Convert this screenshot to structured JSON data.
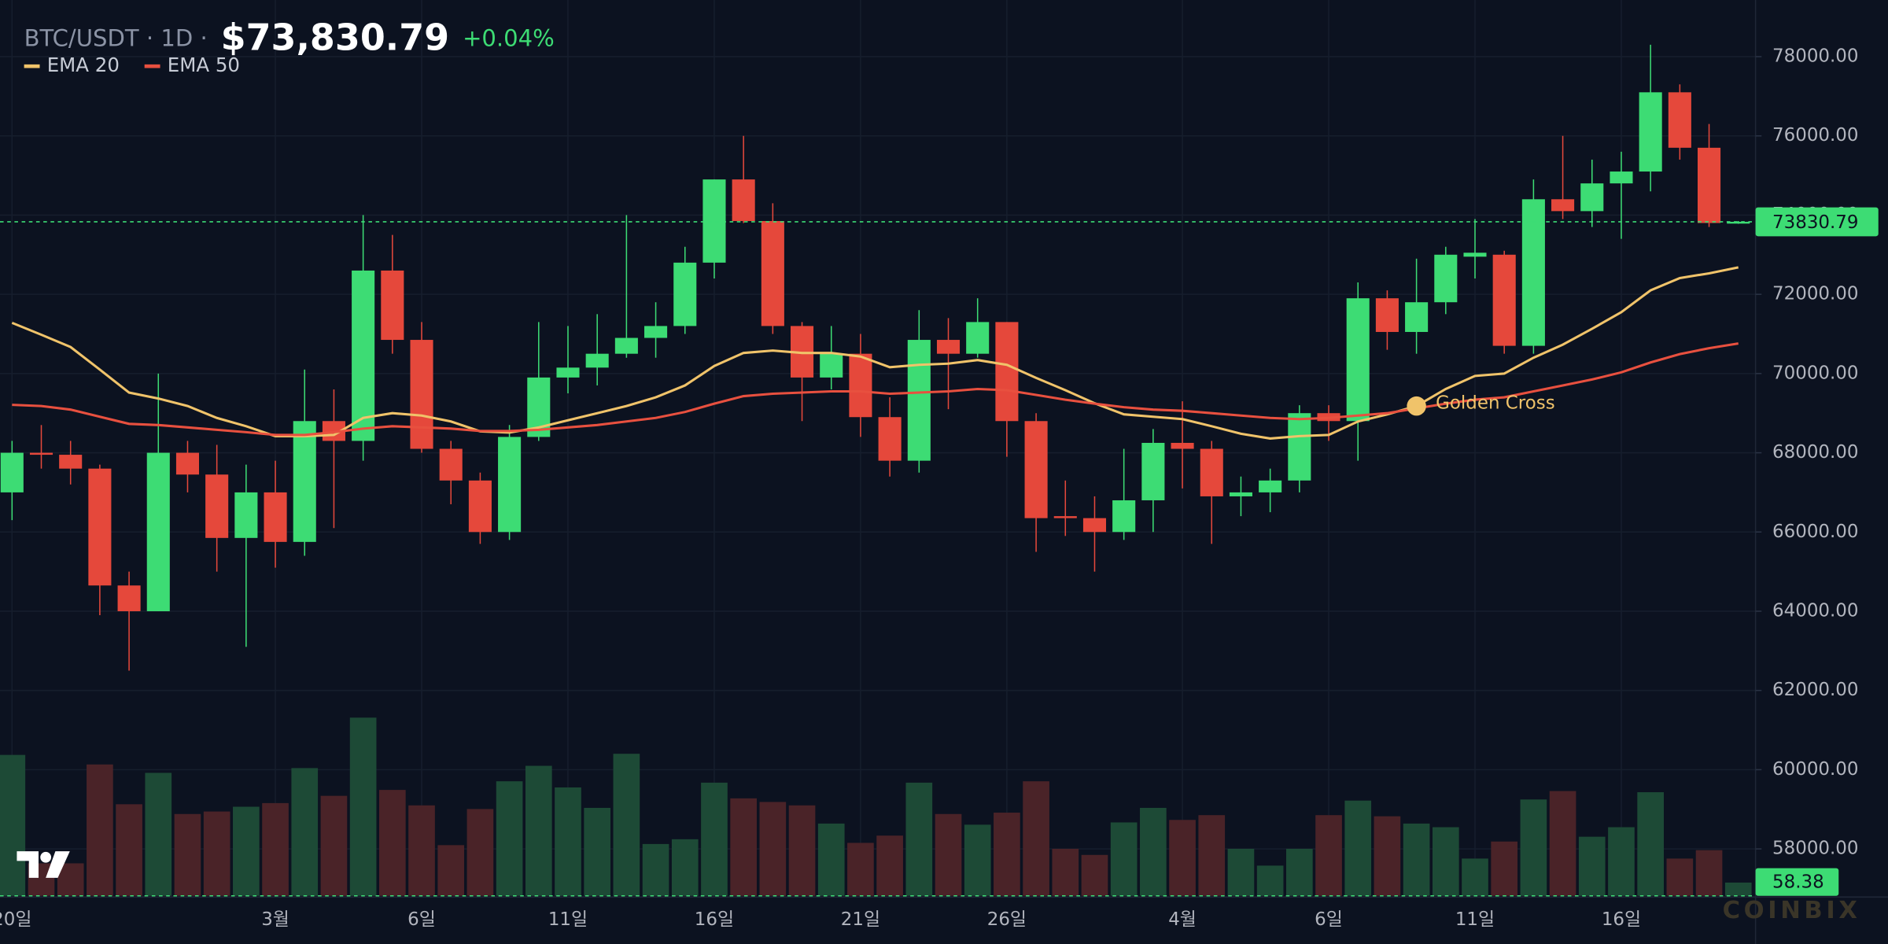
{
  "chart_data": {
    "type": "candlestick",
    "title": "BTC/USDT · 1D ·",
    "price": "$73,830.79",
    "change": "+0.04%",
    "watermark": "COINBIX",
    "up_color": "#3ddc74",
    "down_color": "#e5483b",
    "volume_up_color": "#1d4a36",
    "volume_down_color": "#4a2328",
    "categories": [
      "20일",
      null,
      null,
      null,
      null,
      null,
      null,
      null,
      null,
      "3월",
      null,
      null,
      null,
      null,
      "6일",
      null,
      null,
      null,
      null,
      "11일",
      null,
      null,
      null,
      null,
      "16일",
      null,
      null,
      null,
      null,
      "21일",
      null,
      null,
      null,
      null,
      "26일",
      null,
      null,
      null,
      null,
      null,
      "4월",
      null,
      null,
      null,
      null,
      "6일",
      null,
      null,
      null,
      null,
      "11일",
      null,
      null,
      null,
      null,
      "16일",
      null,
      null,
      null,
      null
    ],
    "open": [
      67000,
      68000,
      67950,
      67600,
      64650,
      64000,
      68000,
      67450,
      65850,
      67000,
      65750,
      68800,
      68300,
      72600,
      70850,
      68100,
      67300,
      66000,
      68400,
      69900,
      70150,
      70500,
      70900,
      71200,
      72800,
      74900,
      73850,
      71200,
      69900,
      70500,
      68900,
      67800,
      70850,
      70500,
      71300,
      68800,
      66400,
      66350,
      66000,
      66800,
      68250,
      68100,
      66900,
      67000,
      67300,
      69000,
      68800,
      71900,
      71050,
      71800,
      72950,
      73000,
      70700,
      74400,
      74100,
      74800,
      75100,
      77100,
      75700,
      73810
    ],
    "high": [
      68300,
      68700,
      68300,
      67700,
      65000,
      70000,
      68300,
      68200,
      67700,
      67800,
      70100,
      69600,
      74000,
      73500,
      71300,
      68300,
      67500,
      68700,
      71300,
      71200,
      71500,
      74000,
      71800,
      73200,
      74900,
      76000,
      74300,
      71300,
      71200,
      71000,
      69400,
      71600,
      71400,
      71900,
      71300,
      69000,
      67300,
      66900,
      68100,
      68600,
      69300,
      68300,
      67400,
      67600,
      69200,
      69200,
      72300,
      72100,
      72900,
      73200,
      73900,
      73100,
      74900,
      76000,
      75400,
      75600,
      78300,
      77300,
      76300,
      73850
    ],
    "low": [
      66300,
      67600,
      67200,
      63900,
      62500,
      64000,
      67000,
      65000,
      63100,
      65100,
      65400,
      66100,
      67800,
      70500,
      68000,
      66700,
      65700,
      65800,
      68300,
      69500,
      69700,
      70400,
      70400,
      71000,
      72400,
      73800,
      71000,
      68800,
      69600,
      68400,
      67400,
      67500,
      69100,
      70400,
      67900,
      65500,
      65900,
      65000,
      65800,
      66000,
      67100,
      65700,
      66400,
      66500,
      67000,
      68300,
      67800,
      70600,
      70500,
      71500,
      72400,
      70500,
      70500,
      73900,
      73700,
      73400,
      74600,
      75400,
      73700,
      73780
    ],
    "close": [
      68000,
      67950,
      67600,
      64650,
      64000,
      68000,
      67450,
      65850,
      67000,
      65750,
      68800,
      68300,
      72600,
      70850,
      68100,
      67300,
      66000,
      68400,
      69900,
      70150,
      70500,
      70900,
      71200,
      72800,
      74900,
      73850,
      71200,
      69900,
      70500,
      68900,
      67800,
      70850,
      70500,
      71300,
      68800,
      66350,
      66350,
      66000,
      66800,
      68250,
      68100,
      66900,
      67000,
      67300,
      69000,
      68800,
      71900,
      71050,
      71800,
      73000,
      73050,
      70700,
      74400,
      74100,
      74800,
      75100,
      77100,
      75700,
      73800,
      73830.79
    ],
    "volume": [
      620,
      143,
      143,
      578,
      403,
      541,
      360,
      371,
      392,
      408,
      562,
      440,
      784,
      466,
      398,
      223,
      382,
      504,
      572,
      477,
      387,
      625,
      228,
      249,
      498,
      429,
      413,
      398,
      318,
      233,
      265,
      498,
      360,
      313,
      366,
      504,
      207,
      180,
      323,
      387,
      334,
      355,
      207,
      133,
      207,
      355,
      419,
      350,
      318,
      302,
      164,
      239,
      424,
      461,
      260,
      302,
      456,
      164,
      201,
      58.38
    ],
    "overlays": [
      {
        "name": "EMA 20",
        "color": "#f0c36a",
        "values": [
          71280,
          70980,
          70670,
          70100,
          69520,
          69370,
          69180,
          68880,
          68670,
          68420,
          68420,
          68450,
          68880,
          69000,
          68940,
          68790,
          68540,
          68510,
          68640,
          68820,
          69000,
          69180,
          69400,
          69700,
          70190,
          70520,
          70580,
          70520,
          70520,
          70430,
          70160,
          70220,
          70250,
          70340,
          70220,
          69890,
          69580,
          69250,
          68970,
          68910,
          68850,
          68670,
          68480,
          68360,
          68420,
          68450,
          68790,
          68970,
          69180,
          69610,
          69940,
          70000,
          70400,
          70730,
          71130,
          71550,
          72100,
          72410,
          72530,
          72680
        ]
      },
      {
        "name": "EMA 50",
        "color": "#e8503f",
        "values": [
          69210,
          69180,
          69090,
          68910,
          68730,
          68700,
          68640,
          68580,
          68520,
          68450,
          68450,
          68520,
          68610,
          68670,
          68640,
          68610,
          68550,
          68550,
          68580,
          68640,
          68700,
          68790,
          68880,
          69030,
          69240,
          69430,
          69490,
          69520,
          69550,
          69550,
          69490,
          69520,
          69550,
          69610,
          69580,
          69460,
          69340,
          69240,
          69150,
          69090,
          69060,
          69000,
          68940,
          68880,
          68850,
          68880,
          68940,
          69000,
          69120,
          69240,
          69340,
          69400,
          69550,
          69700,
          69850,
          70030,
          70280,
          70490,
          70640,
          70760
        ]
      }
    ],
    "annotations": [
      {
        "text": "Golden Cross",
        "x": 48,
        "color": "#f0c36a"
      }
    ],
    "ylim": [
      56815,
      79430
    ],
    "yticks": [
      {
        "value": 58000,
        "label": "58000.00"
      },
      {
        "value": 60000,
        "label": "60000.00"
      },
      {
        "value": 62000,
        "label": "62000.00"
      },
      {
        "value": 64000,
        "label": "64000.00"
      },
      {
        "value": 66000,
        "label": "66000.00"
      },
      {
        "value": 68000,
        "label": "68000.00"
      },
      {
        "value": 70000,
        "label": "70000.00"
      },
      {
        "value": 72000,
        "label": "72000.00"
      },
      {
        "value": 74000,
        "label": "74000.00"
      },
      {
        "value": 76000,
        "label": "76000.00"
      },
      {
        "value": 78000,
        "label": "78000.00"
      }
    ],
    "grid": true
  }
}
